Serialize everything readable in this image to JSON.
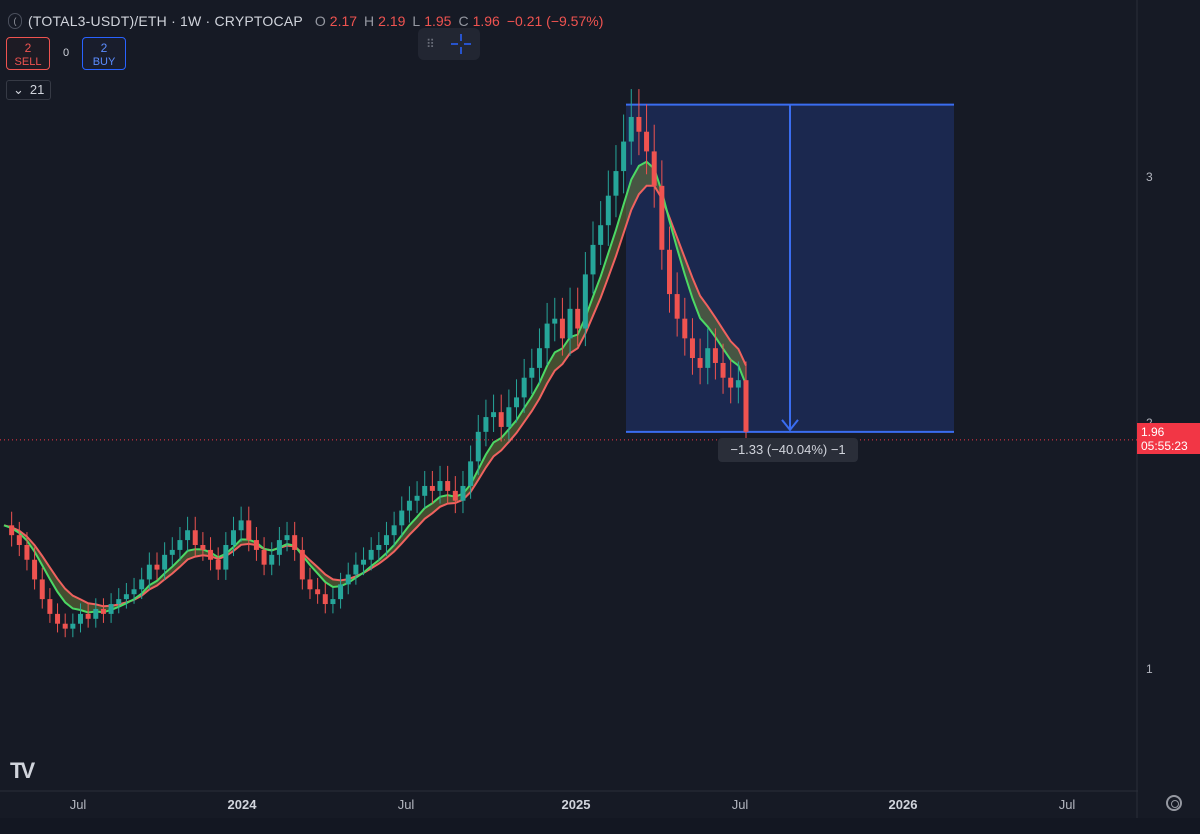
{
  "header": {
    "collapse_icon": "chevron-left",
    "title": "(TOTAL3-USDT)/ETH · 1W · CRYPTOCAP",
    "ohlc": [
      {
        "key": "O",
        "value": "2.17"
      },
      {
        "key": "H",
        "value": "2.19"
      },
      {
        "key": "L",
        "value": "1.95"
      },
      {
        "key": "C",
        "value": "1.96"
      }
    ],
    "change": "−0.21 (−9.57%)"
  },
  "trade": {
    "sell_count": "2",
    "sell_label": "SELL",
    "spread": "0",
    "buy_count": "2",
    "buy_label": "BUY"
  },
  "indicator": {
    "length": "21",
    "toggle_icon": "chevron-down-icon"
  },
  "toolbar": {
    "drag_icon": "drag-handle-icon",
    "crosshair_icon": "crosshair-icon"
  },
  "price_axis": {
    "labels": [
      "3",
      "2",
      "1"
    ],
    "last_price": "1.96",
    "countdown": "05:55:23"
  },
  "measure": {
    "label": "−1.33 (−40.04%) −1"
  },
  "time_axis": {
    "labels": [
      {
        "text": "Jul",
        "year": false
      },
      {
        "text": "2024",
        "year": true
      },
      {
        "text": "Jul",
        "year": false
      },
      {
        "text": "2025",
        "year": true
      },
      {
        "text": "Jul",
        "year": false
      },
      {
        "text": "2026",
        "year": true
      },
      {
        "text": "Jul",
        "year": false
      }
    ]
  },
  "colors": {
    "background": "#161a25",
    "up": "#26a69a",
    "down": "#ef5350",
    "ma_fast": "#4cd964",
    "ma_slow": "#f0625f",
    "measure_fill": "#1e2d5e",
    "measure_line": "#3a6df0"
  },
  "chart_data": {
    "type": "candlestick",
    "timeframe": "1W",
    "ylim": [
      0.8,
      3.6
    ],
    "price_labels": [
      1,
      2,
      3
    ],
    "last_close": 1.96,
    "measure_range": {
      "from": 3.29,
      "to": 1.96,
      "change": -1.33,
      "change_pct": -40.04
    },
    "close_series_sampled": [
      1.58,
      1.54,
      1.5,
      1.44,
      1.36,
      1.28,
      1.22,
      1.18,
      1.16,
      1.18,
      1.22,
      1.2,
      1.24,
      1.22,
      1.26,
      1.28,
      1.3,
      1.32,
      1.36,
      1.42,
      1.4,
      1.46,
      1.48,
      1.52,
      1.56,
      1.5,
      1.48,
      1.44,
      1.4,
      1.5,
      1.56,
      1.6,
      1.52,
      1.48,
      1.42,
      1.46,
      1.52,
      1.54,
      1.48,
      1.36,
      1.32,
      1.3,
      1.26,
      1.28,
      1.34,
      1.38,
      1.42,
      1.44,
      1.48,
      1.5,
      1.54,
      1.58,
      1.64,
      1.68,
      1.7,
      1.74,
      1.72,
      1.76,
      1.72,
      1.68,
      1.74,
      1.84,
      1.96,
      2.02,
      2.04,
      1.98,
      2.06,
      2.1,
      2.18,
      2.22,
      2.3,
      2.4,
      2.42,
      2.34,
      2.46,
      2.38,
      2.6,
      2.72,
      2.8,
      2.92,
      3.02,
      3.14,
      3.24,
      3.18,
      3.1,
      2.96,
      2.7,
      2.52,
      2.42,
      2.34,
      2.26,
      2.22,
      2.3,
      2.24,
      2.18,
      2.14,
      2.17,
      1.96
    ]
  }
}
